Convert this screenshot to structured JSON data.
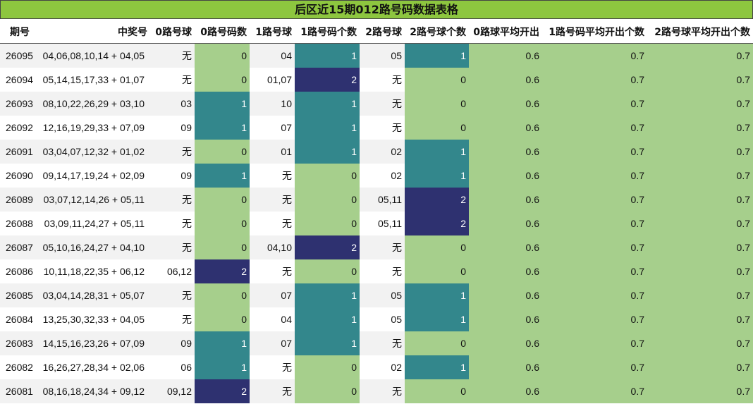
{
  "title": "后区近15期012路号码数据表格",
  "colors": {
    "count_0": "#a6cf8c",
    "count_1": "#33878c",
    "count_2": "#2e3170",
    "title_bg": "#8dc63f"
  },
  "headers": [
    "期号",
    "中奖号",
    "0路号球",
    "0路号码数",
    "1路号球",
    "1路号码个数",
    "2路号球",
    "2路号球个数",
    "0路球平均开出",
    "1路号码平均开出个数",
    "2路号球平均开出个数"
  ],
  "chart_data": {
    "type": "table",
    "title": "后区近15期012路号码数据表格",
    "columns": [
      "期号",
      "中奖号",
      "0路号球",
      "0路号码数",
      "1路号球",
      "1路号码个数",
      "2路号球",
      "2路号球个数",
      "0路球平均开出",
      "1路号码平均开出个数",
      "2路号球平均开出个数"
    ],
    "rows": [
      [
        "26095",
        "04,06,08,10,14 + 04,05",
        "无",
        "0",
        "04",
        "1",
        "05",
        "1",
        "0.6",
        "0.7",
        "0.7"
      ],
      [
        "26094",
        "05,14,15,17,33 + 01,07",
        "无",
        "0",
        "01,07",
        "2",
        "无",
        "0",
        "0.6",
        "0.7",
        "0.7"
      ],
      [
        "26093",
        "08,10,22,26,29 + 03,10",
        "03",
        "1",
        "10",
        "1",
        "无",
        "0",
        "0.6",
        "0.7",
        "0.7"
      ],
      [
        "26092",
        "12,16,19,29,33 + 07,09",
        "09",
        "1",
        "07",
        "1",
        "无",
        "0",
        "0.6",
        "0.7",
        "0.7"
      ],
      [
        "26091",
        "03,04,07,12,32 + 01,02",
        "无",
        "0",
        "01",
        "1",
        "02",
        "1",
        "0.6",
        "0.7",
        "0.7"
      ],
      [
        "26090",
        "09,14,17,19,24 + 02,09",
        "09",
        "1",
        "无",
        "0",
        "02",
        "1",
        "0.6",
        "0.7",
        "0.7"
      ],
      [
        "26089",
        "03,07,12,14,26 + 05,11",
        "无",
        "0",
        "无",
        "0",
        "05,11",
        "2",
        "0.6",
        "0.7",
        "0.7"
      ],
      [
        "26088",
        "03,09,11,24,27 + 05,11",
        "无",
        "0",
        "无",
        "0",
        "05,11",
        "2",
        "0.6",
        "0.7",
        "0.7"
      ],
      [
        "26087",
        "05,10,16,24,27 + 04,10",
        "无",
        "0",
        "04,10",
        "2",
        "无",
        "0",
        "0.6",
        "0.7",
        "0.7"
      ],
      [
        "26086",
        "10,11,18,22,35 + 06,12",
        "06,12",
        "2",
        "无",
        "0",
        "无",
        "0",
        "0.6",
        "0.7",
        "0.7"
      ],
      [
        "26085",
        "03,04,14,28,31 + 05,07",
        "无",
        "0",
        "07",
        "1",
        "05",
        "1",
        "0.6",
        "0.7",
        "0.7"
      ],
      [
        "26084",
        "13,25,30,32,33 + 04,05",
        "无",
        "0",
        "04",
        "1",
        "05",
        "1",
        "0.6",
        "0.7",
        "0.7"
      ],
      [
        "26083",
        "14,15,16,23,26 + 07,09",
        "09",
        "1",
        "07",
        "1",
        "无",
        "0",
        "0.6",
        "0.7",
        "0.7"
      ],
      [
        "26082",
        "16,26,27,28,34 + 02,06",
        "06",
        "1",
        "无",
        "0",
        "02",
        "1",
        "0.6",
        "0.7",
        "0.7"
      ],
      [
        "26081",
        "08,16,18,24,34 + 09,12",
        "09,12",
        "2",
        "无",
        "0",
        "无",
        "0",
        "0.6",
        "0.7",
        "0.7"
      ]
    ]
  }
}
